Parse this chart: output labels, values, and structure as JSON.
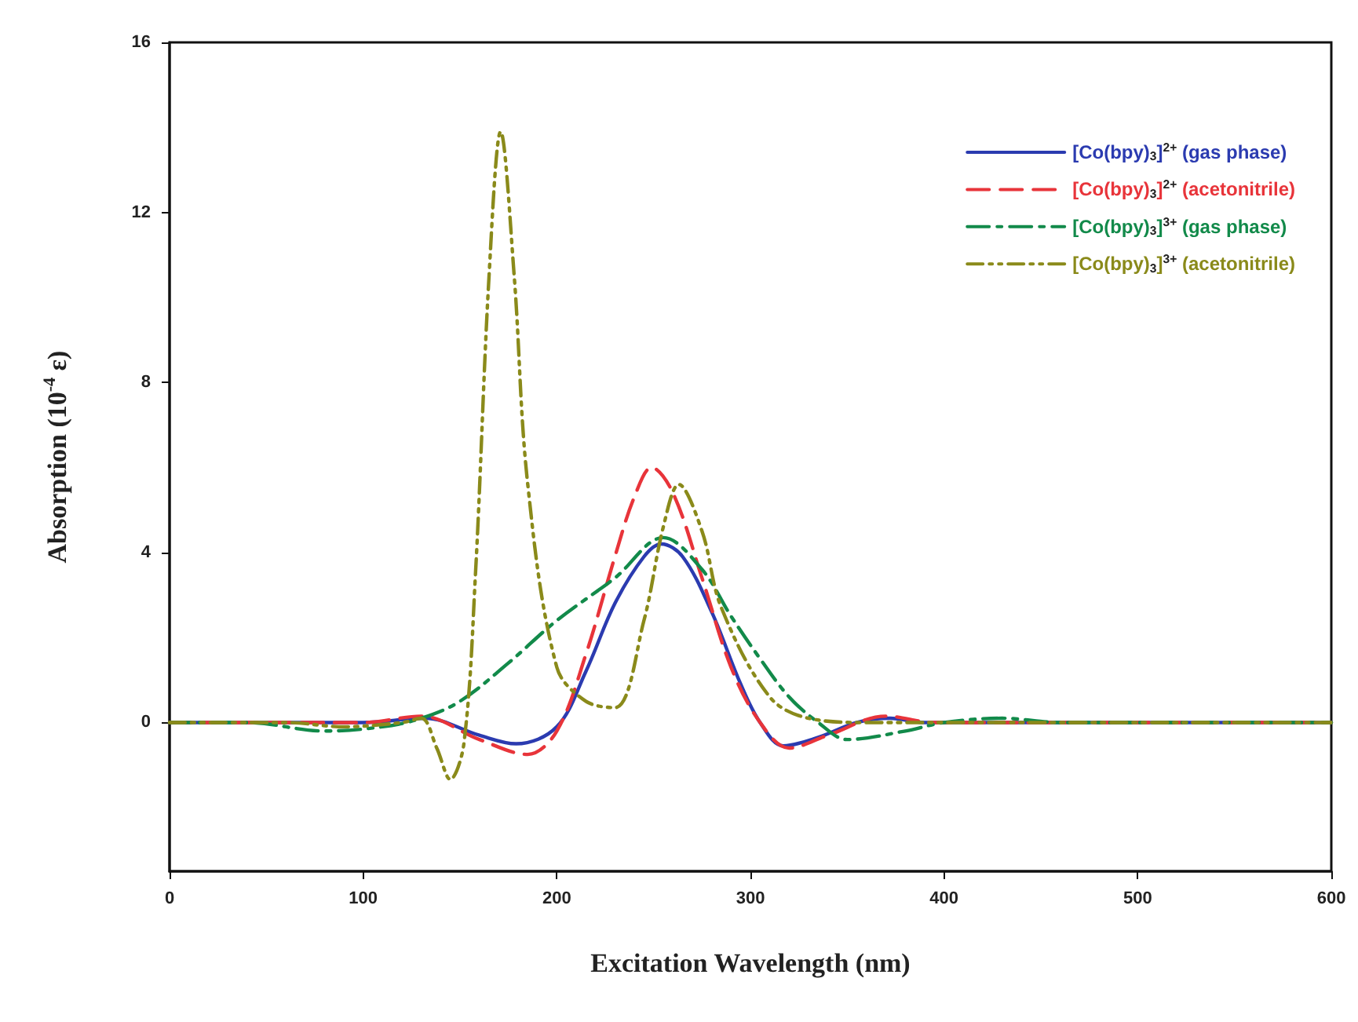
{
  "chart_data": {
    "type": "line",
    "xlabel": "Excitation Wavelength (nm)",
    "ylabel": "Absorption (10$^{-4}$ ε)",
    "xlim": [
      0,
      600
    ],
    "xticks": [
      0,
      100,
      200,
      300,
      400,
      500,
      600
    ],
    "ylim": [
      -3.5,
      16
    ],
    "yticks": [
      0,
      4,
      8,
      12,
      16
    ],
    "grid": false,
    "legend": "top right",
    "marker": "none",
    "series": [
      {
        "name": "[Co(bpy)$_{3}$]$^{2+}$ (gas phase)",
        "color": "#2b3bb0",
        "line_style": "solid",
        "x": [
          0,
          60,
          100,
          132,
          160,
          179,
          200,
          215,
          230,
          245,
          254,
          265,
          280,
          295,
          305,
          317,
          335,
          355,
          372,
          390,
          410,
          450,
          500,
          600
        ],
        "values": [
          0,
          0,
          0,
          0.1,
          -0.3,
          -0.5,
          -0.1,
          1.2,
          2.8,
          3.9,
          4.2,
          3.9,
          2.6,
          0.9,
          0,
          -0.55,
          -0.35,
          0,
          0.1,
          0,
          0,
          0,
          0,
          0
        ]
      },
      {
        "name": "[Co(bpy)$_{3}$]$^{2+}$ (acetonitrile)",
        "color": "#e8343a",
        "line_style": "dashed",
        "x": [
          0,
          60,
          100,
          130,
          160,
          185,
          200,
          215,
          230,
          240,
          249,
          260,
          275,
          290,
          305,
          320,
          340,
          370,
          395,
          420,
          450,
          500,
          600
        ],
        "values": [
          0,
          0,
          0,
          0.15,
          -0.4,
          -0.75,
          -0.2,
          1.6,
          3.9,
          5.3,
          6.0,
          5.4,
          3.4,
          1.3,
          0,
          -0.6,
          -0.3,
          0.15,
          0,
          0,
          0,
          0,
          0
        ]
      },
      {
        "name": "[Co(bpy)$_{3}$]$^{3+}$ (gas phase)",
        "color": "#128a4a",
        "line_style": "dashed",
        "x": [
          0,
          40,
          80,
          110,
          130,
          150,
          175,
          200,
          230,
          255,
          275,
          290,
          305,
          320,
          335,
          350,
          380,
          400,
          430,
          460,
          500,
          600
        ],
        "values": [
          0,
          0,
          -0.2,
          -0.1,
          0.1,
          0.5,
          1.4,
          2.4,
          3.4,
          4.35,
          3.6,
          2.5,
          1.5,
          0.6,
          0,
          -0.4,
          -0.2,
          0,
          0.1,
          0,
          0,
          0
        ]
      },
      {
        "name": "[Co(bpy)$_{3}$]$^{3+}$ (acetonitrile)",
        "color": "#8a8a1a",
        "line_style": "dotted",
        "x": [
          0,
          60,
          90,
          120,
          130,
          138,
          145,
          152,
          158,
          165,
          171,
          178,
          185,
          200,
          215,
          230,
          245,
          255,
          263,
          275,
          285,
          310,
          330,
          360,
          400,
          500,
          600
        ],
        "values": [
          0,
          0,
          -0.1,
          0,
          0.1,
          -0.6,
          -1.34,
          -0.5,
          3.5,
          10.5,
          13.9,
          10.5,
          5.6,
          1.3,
          0.5,
          0.35,
          2.4,
          4.6,
          5.6,
          4.5,
          2.7,
          0.6,
          0.1,
          0,
          0,
          0,
          0
        ]
      }
    ]
  }
}
